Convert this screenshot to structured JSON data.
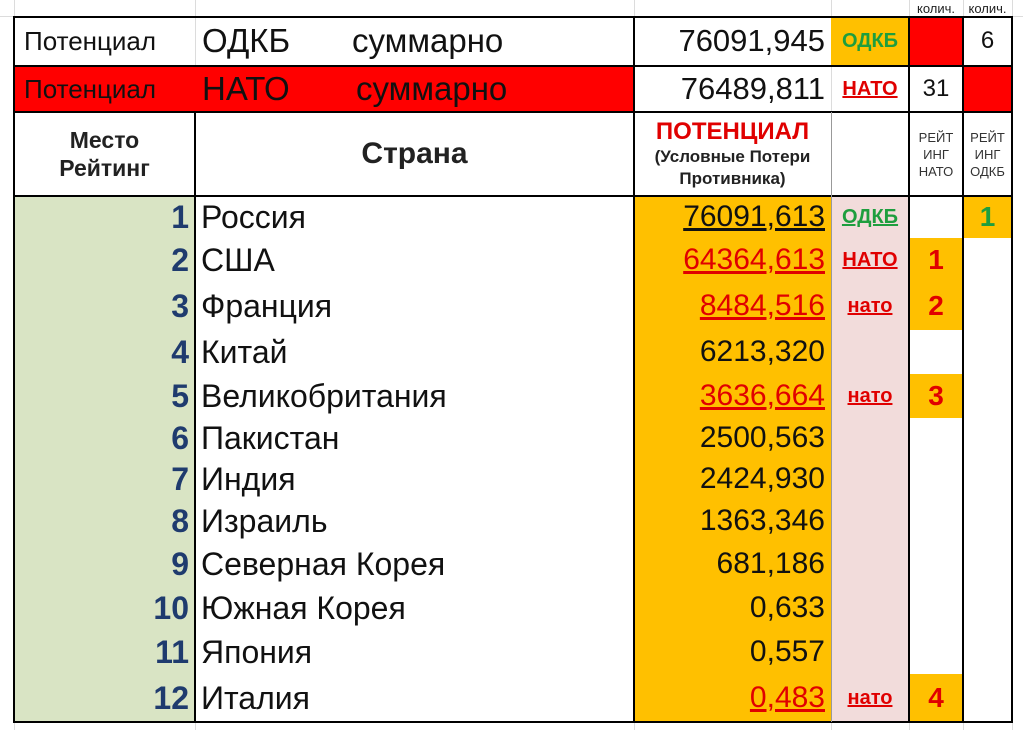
{
  "header_counts": {
    "col1": "колич.",
    "col2": "колич."
  },
  "summary": {
    "odkb": {
      "label": "Потенциал",
      "bloc": "ОДКБ",
      "word": "суммарно",
      "value": "76091,945",
      "tag": "ОДКБ",
      "count_nato": "",
      "count_odkb": "6"
    },
    "nato": {
      "label": "Потенциал",
      "bloc": "НАТО",
      "word": "суммарно",
      "value": "76489,811",
      "tag": "НАТО",
      "count_nato": "31",
      "count_odkb": ""
    }
  },
  "columns": {
    "rank": "Место Рейтинг",
    "rank_line1": "Место",
    "rank_line2": "Рейтинг",
    "country": "Страна",
    "potential_title": "ПОТЕНЦИАЛ",
    "potential_sub1": "(Условные Потери",
    "potential_sub2": "Противника)",
    "rating_nato_1": "РЕЙТ",
    "rating_nato_2": "ИНГ",
    "rating_nato_3": "НАТО",
    "rating_odkb_1": "РЕЙТ",
    "rating_odkb_2": "ИНГ",
    "rating_odkb_3": "ОДКБ"
  },
  "rows": [
    {
      "rank": "1",
      "country": "Россия",
      "value": "76091,613",
      "tag": "ОДКБ",
      "tag_type": "odkb",
      "nato_rank": "",
      "odkb_rank": "1"
    },
    {
      "rank": "2",
      "country": "США",
      "value": "64364,613",
      "tag": "НАТО",
      "tag_type": "nato",
      "nato_rank": "1",
      "odkb_rank": ""
    },
    {
      "rank": "3",
      "country": "Франция",
      "value": "8484,516",
      "tag": "нато",
      "tag_type": "nato",
      "nato_rank": "2",
      "odkb_rank": ""
    },
    {
      "rank": "4",
      "country": "Китай",
      "value": "6213,320",
      "tag": "",
      "tag_type": "",
      "nato_rank": "",
      "odkb_rank": ""
    },
    {
      "rank": "5",
      "country": "Великобритания",
      "value": "3636,664",
      "tag": "нато",
      "tag_type": "nato",
      "nato_rank": "3",
      "odkb_rank": ""
    },
    {
      "rank": "6",
      "country": "Пакистан",
      "value": "2500,563",
      "tag": "",
      "tag_type": "",
      "nato_rank": "",
      "odkb_rank": ""
    },
    {
      "rank": "7",
      "country": "Индия",
      "value": "2424,930",
      "tag": "",
      "tag_type": "",
      "nato_rank": "",
      "odkb_rank": ""
    },
    {
      "rank": "8",
      "country": "Израиль",
      "value": "1363,346",
      "tag": "",
      "tag_type": "",
      "nato_rank": "",
      "odkb_rank": ""
    },
    {
      "rank": "9",
      "country": "Северная Корея",
      "value": "681,186",
      "tag": "",
      "tag_type": "",
      "nato_rank": "",
      "odkb_rank": ""
    },
    {
      "rank": "10",
      "country": "Южная Корея",
      "value": "0,633",
      "tag": "",
      "tag_type": "",
      "nato_rank": "",
      "odkb_rank": ""
    },
    {
      "rank": "11",
      "country": "Япония",
      "value": "0,557",
      "tag": "",
      "tag_type": "",
      "nato_rank": "",
      "odkb_rank": ""
    },
    {
      "rank": "12",
      "country": "Италия",
      "value": "0,483",
      "tag": "нато",
      "tag_type": "nato",
      "nato_rank": "4",
      "odkb_rank": ""
    }
  ],
  "colors": {
    "rank_bg": "#d9e4c4",
    "potential_bg": "#ffc000",
    "tag_bg": "#f2dcdb",
    "nato_red": "#ff0000",
    "odkb_green": "#1e9e3e",
    "rank_text": "#1f3b6e"
  }
}
